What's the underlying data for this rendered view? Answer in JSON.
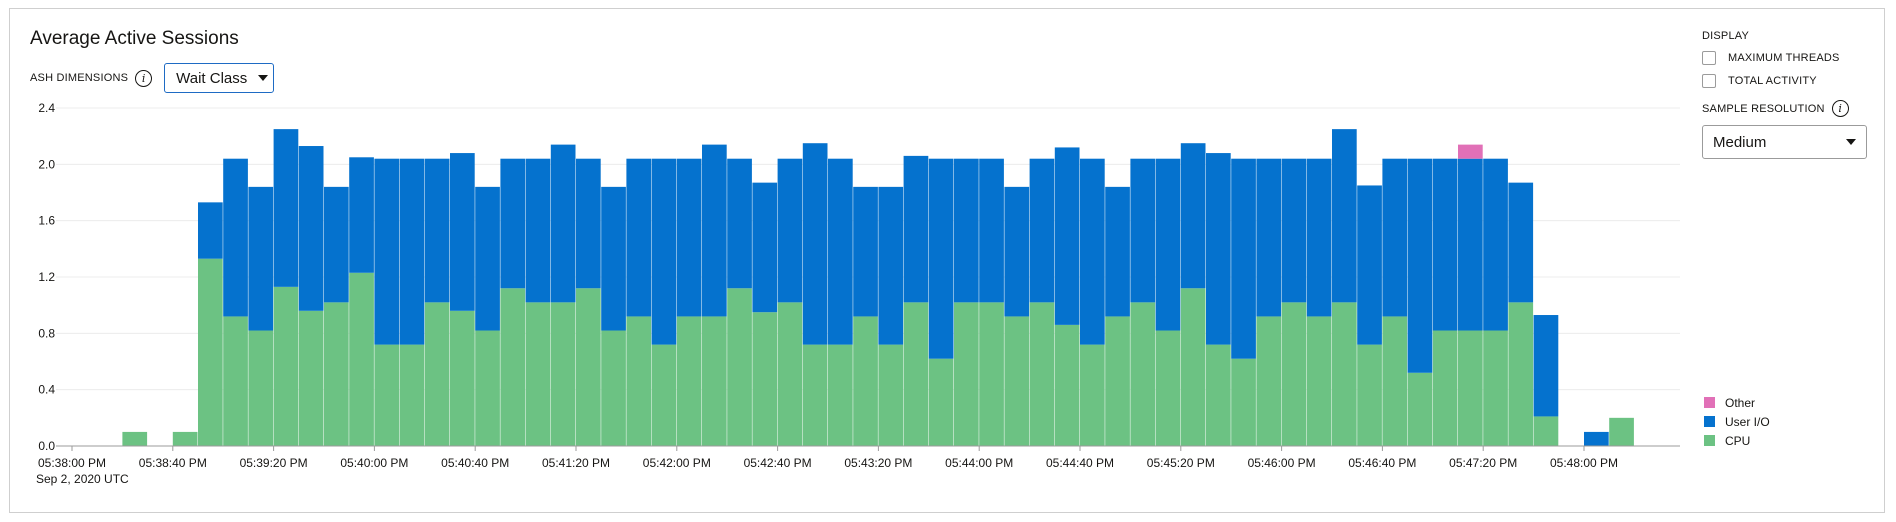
{
  "header": {
    "title": "Average Active Sessions",
    "dimensions_label": "ASH DIMENSIONS",
    "dimensions_value": "Wait Class"
  },
  "sidebar": {
    "display_heading": "DISPLAY",
    "checkboxes": [
      {
        "label": "MAXIMUM THREADS",
        "checked": false
      },
      {
        "label": "TOTAL ACTIVITY",
        "checked": false
      }
    ],
    "resolution_label": "SAMPLE RESOLUTION",
    "resolution_value": "Medium"
  },
  "colors": {
    "cpu": "#6cc283",
    "user_io": "#0572ce",
    "other": "#e170b7"
  },
  "chart_data": {
    "type": "bar",
    "stacked": true,
    "title": "Average Active Sessions",
    "xlabel": "",
    "ylabel": "",
    "ylim": [
      0,
      2.4
    ],
    "yticks": [
      "0.0",
      "0.4",
      "0.8",
      "1.2",
      "1.6",
      "2.0",
      "2.4"
    ],
    "xticks": [
      "05:38:00 PM",
      "05:38:40 PM",
      "05:39:20 PM",
      "05:40:00 PM",
      "05:40:40 PM",
      "05:41:20 PM",
      "05:42:00 PM",
      "05:42:40 PM",
      "05:43:20 PM",
      "05:44:00 PM",
      "05:44:40 PM",
      "05:45:20 PM",
      "05:46:00 PM",
      "05:46:40 PM",
      "05:47:20 PM",
      "05:48:00 PM"
    ],
    "date_label": "Sep 2, 2020 UTC",
    "interval_seconds": 10,
    "x": [
      "05:38:00 PM",
      "05:38:10 PM",
      "05:38:20 PM",
      "05:38:30 PM",
      "05:38:40 PM",
      "05:38:50 PM",
      "05:39:00 PM",
      "05:39:10 PM",
      "05:39:20 PM",
      "05:39:30 PM",
      "05:39:40 PM",
      "05:39:50 PM",
      "05:40:00 PM",
      "05:40:10 PM",
      "05:40:20 PM",
      "05:40:30 PM",
      "05:40:40 PM",
      "05:40:50 PM",
      "05:41:00 PM",
      "05:41:10 PM",
      "05:41:20 PM",
      "05:41:30 PM",
      "05:41:40 PM",
      "05:41:50 PM",
      "05:42:00 PM",
      "05:42:10 PM",
      "05:42:20 PM",
      "05:42:30 PM",
      "05:42:40 PM",
      "05:42:50 PM",
      "05:43:00 PM",
      "05:43:10 PM",
      "05:43:20 PM",
      "05:43:30 PM",
      "05:43:40 PM",
      "05:43:50 PM",
      "05:44:00 PM",
      "05:44:10 PM",
      "05:44:20 PM",
      "05:44:30 PM",
      "05:44:40 PM",
      "05:44:50 PM",
      "05:45:00 PM",
      "05:45:10 PM",
      "05:45:20 PM",
      "05:45:30 PM",
      "05:45:40 PM",
      "05:45:50 PM",
      "05:46:00 PM",
      "05:46:10 PM",
      "05:46:20 PM",
      "05:46:30 PM",
      "05:46:40 PM",
      "05:46:50 PM",
      "05:47:00 PM",
      "05:47:10 PM",
      "05:47:20 PM",
      "05:47:30 PM",
      "05:47:40 PM",
      "05:47:50 PM",
      "05:48:00 PM",
      "05:48:10 PM"
    ],
    "legend_position": "bottom-right",
    "series": [
      {
        "name": "CPU",
        "values": [
          0,
          0,
          0.1,
          0,
          0.1,
          1.33,
          0.92,
          0.82,
          1.13,
          0.96,
          1.02,
          1.23,
          0.72,
          0.72,
          1.02,
          0.96,
          0.82,
          1.12,
          1.02,
          1.02,
          1.12,
          0.82,
          0.92,
          0.72,
          0.92,
          0.92,
          1.12,
          0.95,
          1.02,
          0.72,
          0.72,
          0.92,
          0.72,
          1.02,
          0.62,
          1.02,
          1.02,
          0.92,
          1.02,
          0.86,
          0.72,
          0.92,
          1.02,
          0.82,
          1.12,
          0.72,
          0.62,
          0.92,
          1.02,
          0.92,
          1.02,
          0.72,
          0.92,
          0.52,
          0.82,
          0.82,
          0.82,
          1.02,
          0.21,
          0,
          0,
          0.2
        ]
      },
      {
        "name": "User I/O",
        "values": [
          0,
          0,
          0,
          0,
          0,
          0.4,
          1.12,
          1.02,
          1.12,
          1.17,
          0.82,
          0.82,
          1.32,
          1.32,
          1.02,
          1.12,
          1.02,
          0.92,
          1.02,
          1.12,
          0.92,
          1.02,
          1.12,
          1.32,
          1.12,
          1.22,
          0.92,
          0.92,
          1.02,
          1.43,
          1.32,
          0.92,
          1.12,
          1.04,
          1.42,
          1.02,
          1.02,
          0.92,
          1.02,
          1.26,
          1.32,
          0.92,
          1.02,
          1.22,
          1.03,
          1.36,
          1.42,
          1.12,
          1.02,
          1.12,
          1.23,
          1.13,
          1.12,
          1.52,
          1.22,
          1.22,
          1.22,
          0.85,
          0.72,
          0,
          0.1,
          0
        ]
      },
      {
        "name": "Other",
        "values": [
          0,
          0,
          0,
          0,
          0,
          0,
          0,
          0,
          0,
          0,
          0,
          0,
          0,
          0,
          0,
          0,
          0,
          0,
          0,
          0,
          0,
          0,
          0,
          0,
          0,
          0,
          0,
          0,
          0,
          0,
          0,
          0,
          0,
          0,
          0,
          0,
          0,
          0,
          0,
          0,
          0,
          0,
          0,
          0,
          0,
          0,
          0,
          0,
          0,
          0,
          0,
          0,
          0,
          0,
          0,
          0.1,
          0,
          0,
          0,
          0,
          0,
          0
        ]
      }
    ]
  }
}
